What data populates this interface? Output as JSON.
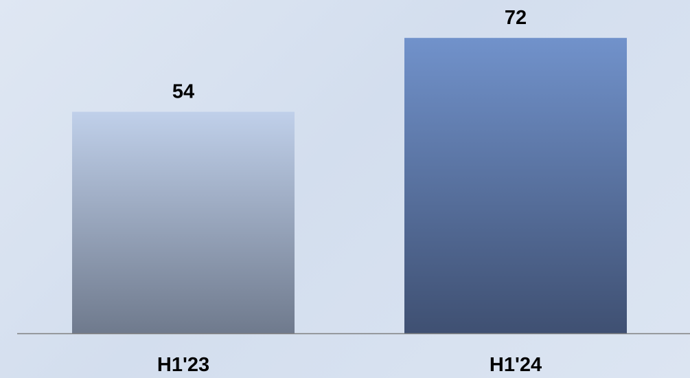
{
  "chart_data": {
    "type": "bar",
    "categories": [
      "H1'23",
      "H1'24"
    ],
    "values": [
      54,
      72
    ],
    "value_labels": [
      "54",
      "72"
    ],
    "title": "",
    "xlabel": "",
    "ylabel": "",
    "ylim": [
      0,
      75
    ],
    "grid": false,
    "legend": "none",
    "colors": {
      "bar_1_top": "#c0d0ea",
      "bar_1_bottom": "#6f7a8d",
      "bar_2_top": "#7192cb",
      "bar_2_bottom": "#3f5072",
      "axis": "#7f7f7f"
    }
  }
}
